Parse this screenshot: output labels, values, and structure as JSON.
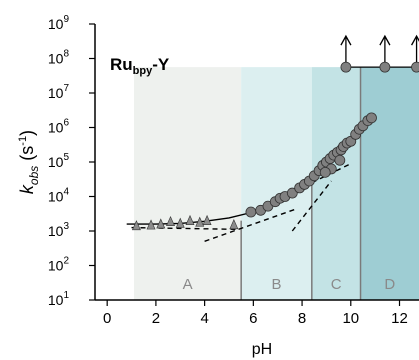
{
  "chart_data": {
    "type": "scatter",
    "title": "Ru_bpy-Y",
    "title_main": "Ru",
    "title_sub": "bpy",
    "title_suffix": "-Y",
    "xlabel": "pH",
    "ylabel": {
      "symbol": "k",
      "subscript": "obs",
      "unit_open": " (s",
      "unit_exp": "-1",
      "unit_close": ")"
    },
    "xlim": [
      -0.5,
      12.8
    ],
    "ylim_log10": [
      1,
      9
    ],
    "y_scale": "log",
    "x_ticks": [
      "0",
      "2",
      "4",
      "6",
      "8",
      "10",
      "12"
    ],
    "x_tick_values": [
      0,
      2,
      4,
      6,
      8,
      10,
      12
    ],
    "y_tick_exponents": [
      1,
      2,
      3,
      4,
      5,
      6,
      7,
      8,
      9
    ],
    "y_tick_base": "10",
    "regions": [
      {
        "label": "A",
        "x_start": 1.1,
        "x_end": 5.5,
        "color": "#eef1ee"
      },
      {
        "label": "B",
        "x_start": 5.5,
        "x_end": 8.4,
        "color": "#dceff0"
      },
      {
        "label": "C",
        "x_start": 8.4,
        "x_end": 10.4,
        "color": "#c3e3e5"
      },
      {
        "label": "D",
        "x_start": 10.4,
        "x_end": 12.8,
        "color": "#9ecdd3"
      }
    ],
    "region_label_y_log": 1.5,
    "series": [
      {
        "marker": "triangle",
        "color": "#8c8c8c",
        "points": [
          [
            1.2,
            3.15
          ],
          [
            1.8,
            3.17
          ],
          [
            2.2,
            3.2
          ],
          [
            2.6,
            3.27
          ],
          [
            3.0,
            3.22
          ],
          [
            3.4,
            3.3
          ],
          [
            3.8,
            3.25
          ],
          [
            4.1,
            3.3
          ],
          [
            5.2,
            3.18
          ]
        ]
      },
      {
        "marker": "circle",
        "color": "#808080",
        "points": [
          [
            5.9,
            3.55
          ],
          [
            6.3,
            3.6
          ],
          [
            6.6,
            3.72
          ],
          [
            6.9,
            3.85
          ],
          [
            7.1,
            3.95
          ],
          [
            7.3,
            4.0
          ],
          [
            7.6,
            4.1
          ],
          [
            7.9,
            4.25
          ],
          [
            8.1,
            4.35
          ],
          [
            8.3,
            4.45
          ],
          [
            8.5,
            4.6
          ],
          [
            8.7,
            4.75
          ],
          [
            8.85,
            4.9
          ],
          [
            9.0,
            5.0
          ],
          [
            9.15,
            5.1
          ],
          [
            9.3,
            5.2
          ],
          [
            9.45,
            5.28
          ],
          [
            9.6,
            5.35
          ],
          [
            9.7,
            5.45
          ],
          [
            9.85,
            5.55
          ],
          [
            10.0,
            5.6
          ],
          [
            10.2,
            5.8
          ],
          [
            10.35,
            5.95
          ],
          [
            10.5,
            6.05
          ],
          [
            10.7,
            6.2
          ],
          [
            10.85,
            6.28
          ],
          [
            9.2,
            4.8
          ],
          [
            9.55,
            5.05
          ],
          [
            8.95,
            4.7
          ]
        ]
      },
      {
        "marker": "circle",
        "color": "#808080",
        "annotation": "up-arrow",
        "points": [
          [
            9.8,
            7.75
          ],
          [
            11.4,
            7.75
          ],
          [
            12.7,
            7.75
          ]
        ]
      }
    ],
    "fit_curve": {
      "style": "solid",
      "points": [
        [
          0.8,
          3.2
        ],
        [
          2.0,
          3.2
        ],
        [
          3.0,
          3.22
        ],
        [
          4.0,
          3.28
        ],
        [
          5.0,
          3.38
        ],
        [
          6.0,
          3.55
        ],
        [
          7.0,
          3.85
        ],
        [
          8.0,
          4.28
        ],
        [
          9.0,
          4.85
        ],
        [
          10.0,
          5.55
        ],
        [
          10.9,
          6.3
        ]
      ]
    },
    "asymptotes": [
      {
        "style": "dashed",
        "points": [
          [
            1.0,
            3.1
          ],
          [
            5.3,
            3.05
          ]
        ]
      },
      {
        "style": "dashed",
        "points": [
          [
            4.0,
            2.7
          ],
          [
            7.8,
            3.65
          ]
        ]
      },
      {
        "style": "dashed",
        "points": [
          [
            7.6,
            3.0
          ],
          [
            9.2,
            4.45
          ]
        ]
      },
      {
        "style": "dashed",
        "points": [
          [
            8.4,
            4.4
          ],
          [
            10.0,
            4.95
          ]
        ]
      }
    ],
    "plateau": {
      "x_start": 9.8,
      "x_end": 12.8,
      "y_log": 7.75
    }
  }
}
